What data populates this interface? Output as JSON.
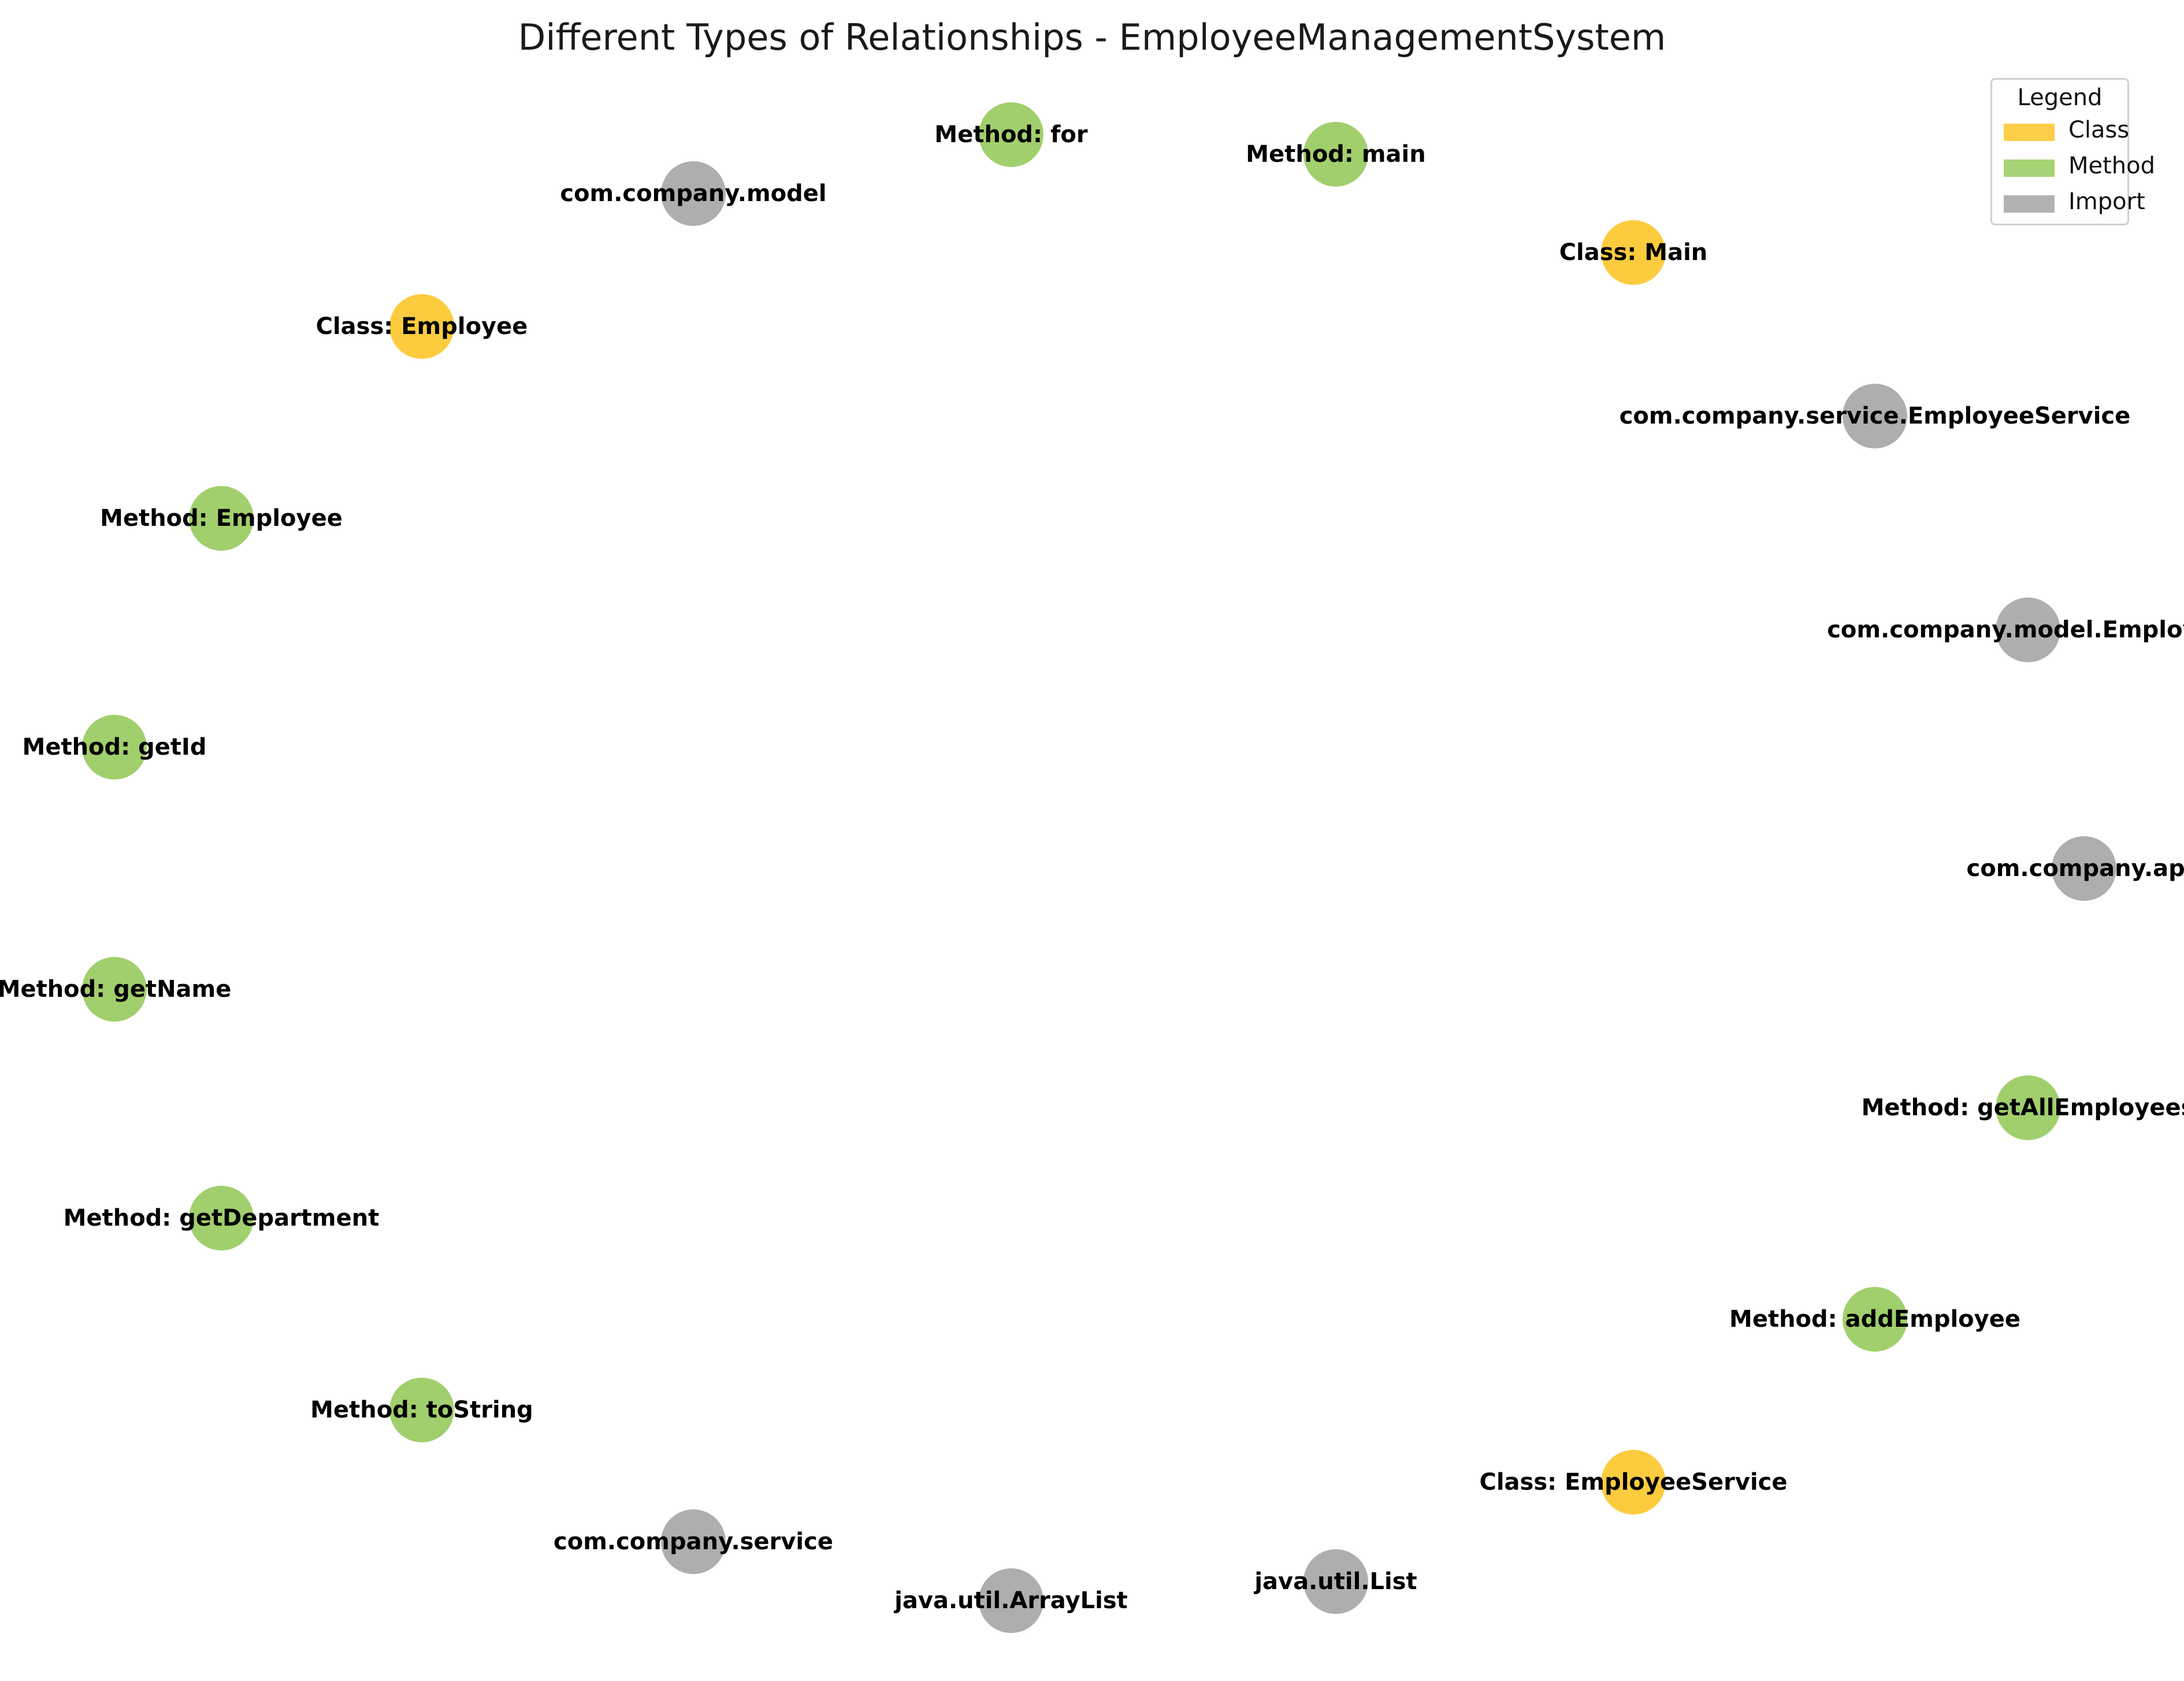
{
  "title": "Different Types of Relationships - EmployeeManagementSystem",
  "colors": {
    "Class": "#fcc934",
    "Method": "#9ccc65",
    "Import": "#aaaaaa"
  },
  "legend": {
    "title": "Legend",
    "items": [
      {
        "label": "Class",
        "type": "Class"
      },
      {
        "label": "Method",
        "type": "Method"
      },
      {
        "label": "Import",
        "type": "Import"
      }
    ]
  },
  "nodes": [
    {
      "id": "method-for",
      "label": "Method: for",
      "type": "Method"
    },
    {
      "id": "method-main",
      "label": "Method: main",
      "type": "Method"
    },
    {
      "id": "com-company-model",
      "label": "com.company.model",
      "type": "Import"
    },
    {
      "id": "class-main",
      "label": "Class: Main",
      "type": "Class"
    },
    {
      "id": "class-employee",
      "label": "Class: Employee",
      "type": "Class"
    },
    {
      "id": "com-company-service-employeeservice",
      "label": "com.company.service.EmployeeService",
      "type": "Import"
    },
    {
      "id": "method-employee",
      "label": "Method: Employee",
      "type": "Method"
    },
    {
      "id": "com-company-model-employee",
      "label": "com.company.model.Employee",
      "type": "Import"
    },
    {
      "id": "method-getid",
      "label": "Method: getId",
      "type": "Method"
    },
    {
      "id": "com-company-app",
      "label": "com.company.app",
      "type": "Import"
    },
    {
      "id": "method-getname",
      "label": "Method: getName",
      "type": "Method"
    },
    {
      "id": "method-getallemployees",
      "label": "Method: getAllEmployees",
      "type": "Method"
    },
    {
      "id": "method-getdepartment",
      "label": "Method: getDepartment",
      "type": "Method"
    },
    {
      "id": "method-addemployee",
      "label": "Method: addEmployee",
      "type": "Method"
    },
    {
      "id": "method-tostring",
      "label": "Method: toString",
      "type": "Method"
    },
    {
      "id": "class-employeeservice",
      "label": "Class: EmployeeService",
      "type": "Class"
    },
    {
      "id": "com-company-service",
      "label": "com.company.service",
      "type": "Import"
    },
    {
      "id": "java-util-list",
      "label": "java.util.List",
      "type": "Import"
    },
    {
      "id": "java-util-arraylist",
      "label": "java.util.ArrayList",
      "type": "Import"
    }
  ]
}
